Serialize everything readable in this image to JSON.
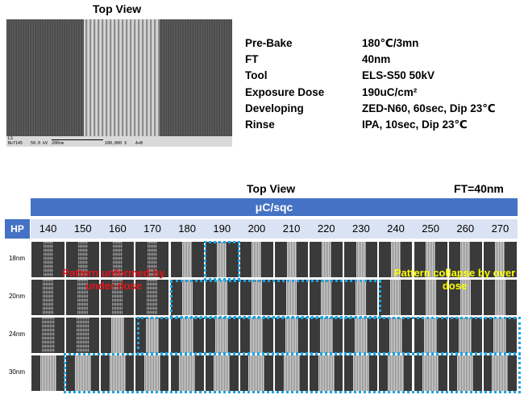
{
  "top_title": "Top View",
  "sem": {
    "line1": "LS",
    "no": "No7145",
    "kv": "50.0 kV",
    "scale": "200nm",
    "mag": "100,000 X",
    "mode": "A+B"
  },
  "params": [
    {
      "label": "Pre-Bake",
      "value": "180℃/3mn"
    },
    {
      "label": "FT",
      "value": "40nm"
    },
    {
      "label": "Tool",
      "value": "ELS-S50 50kV"
    },
    {
      "label": "Exposure Dose",
      "value": "190uC/cm²"
    },
    {
      "label": "Developing",
      "value": "ZED-N60, 60sec, Dip 23℃"
    },
    {
      "label": "Rinse",
      "value": "IPA,  10sec, Dip 23℃"
    }
  ],
  "bottom_title": "Top View",
  "ft_label": "FT=40nm",
  "unit_header": "μC/sqc",
  "hp_header": "HP",
  "doses": [
    "140",
    "150",
    "160",
    "170",
    "180",
    "190",
    "200",
    "210",
    "220",
    "230",
    "240",
    "250",
    "260",
    "270"
  ],
  "hp_rows": [
    "18nm",
    "20nm",
    "24nm",
    "30nm"
  ],
  "annotation_under": "Pattern unformed by under dose",
  "annotation_over": "Pattern   collapse by  over dose",
  "colors": {
    "header": "#4472c4",
    "dose_row": "#dae3f3",
    "box": "#1fa3e0",
    "under": "#e2141a",
    "over": "#ffff00"
  }
}
